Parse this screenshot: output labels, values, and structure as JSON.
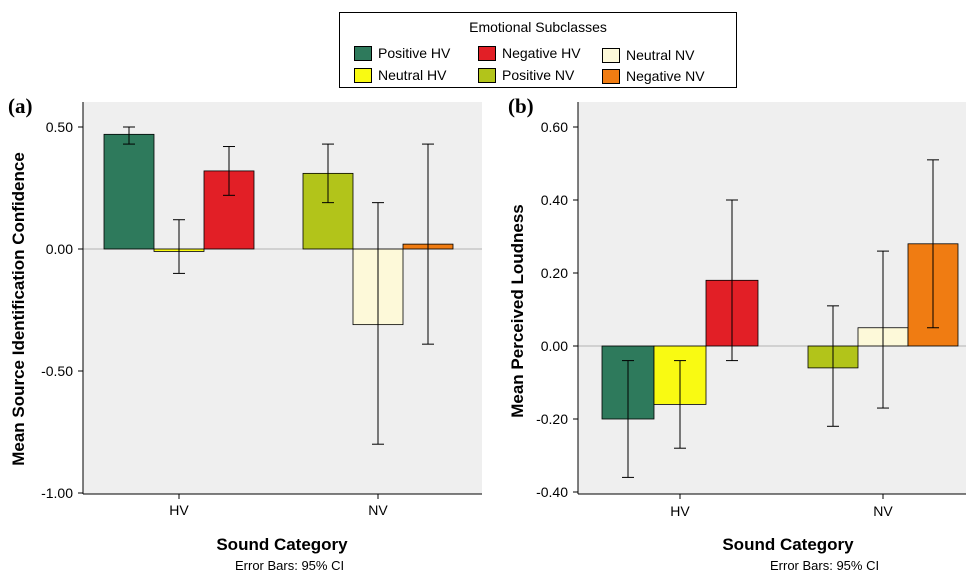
{
  "legend": {
    "title": "Emotional Subclasses",
    "items": [
      {
        "label": "Positive HV",
        "color": "#2e7a5c"
      },
      {
        "label": "Negative HV",
        "color": "#e21f26"
      },
      {
        "label": "Neutral NV",
        "color": "#fdf9d9"
      },
      {
        "label": "Neutral HV",
        "color": "#f9fa12"
      },
      {
        "label": "Positive NV",
        "color": "#b2c41a"
      },
      {
        "label": "Negative NV",
        "color": "#f07c12"
      }
    ]
  },
  "chart_data": [
    {
      "type": "bar",
      "panel_label": "(a)",
      "xlabel": "Sound Category",
      "ylabel": "Mean Source Identification Confidence",
      "footnote": "Error Bars: 95% CI",
      "ylim": [
        -1.0,
        0.6
      ],
      "yticks": [
        0.5,
        0.0,
        -0.5,
        -1.0
      ],
      "ytick_labels": [
        "0.50",
        "0.00",
        "-0.50",
        "-1.00"
      ],
      "grid": false,
      "categories": [
        "HV",
        "NV"
      ],
      "series": [
        {
          "name": "Positive HV",
          "category": "HV",
          "color": "#2e7a5c",
          "value": 0.47,
          "ci": [
            0.43,
            0.5
          ]
        },
        {
          "name": "Neutral HV",
          "category": "HV",
          "color": "#f9fa12",
          "value": -0.01,
          "ci": [
            -0.1,
            0.12
          ]
        },
        {
          "name": "Negative HV",
          "category": "HV",
          "color": "#e21f26",
          "value": 0.32,
          "ci": [
            0.22,
            0.42
          ]
        },
        {
          "name": "Positive NV",
          "category": "NV",
          "color": "#b2c41a",
          "value": 0.31,
          "ci": [
            0.19,
            0.43
          ]
        },
        {
          "name": "Neutral NV",
          "category": "NV",
          "color": "#fdf9d9",
          "value": -0.31,
          "ci": [
            -0.8,
            0.19
          ]
        },
        {
          "name": "Negative NV",
          "category": "NV",
          "color": "#f07c12",
          "value": 0.02,
          "ci": [
            -0.39,
            0.43
          ]
        }
      ]
    },
    {
      "type": "bar",
      "panel_label": "(b)",
      "xlabel": "Sound Category",
      "ylabel": "Mean Perceived Loudness",
      "footnote": "Error Bars: 95% CI",
      "ylim": [
        -0.4,
        0.65
      ],
      "yticks": [
        0.6,
        0.4,
        0.2,
        0.0,
        -0.2,
        -0.4
      ],
      "ytick_labels": [
        "0.60",
        "0.40",
        "0.20",
        "0.00",
        "-0.20",
        "-0.40"
      ],
      "grid": false,
      "categories": [
        "HV",
        "NV"
      ],
      "series": [
        {
          "name": "Positive HV",
          "category": "HV",
          "color": "#2e7a5c",
          "value": -0.2,
          "ci": [
            -0.36,
            -0.04
          ]
        },
        {
          "name": "Neutral HV",
          "category": "HV",
          "color": "#f9fa12",
          "value": -0.16,
          "ci": [
            -0.28,
            -0.04
          ]
        },
        {
          "name": "Negative HV",
          "category": "HV",
          "color": "#e21f26",
          "value": 0.18,
          "ci": [
            -0.04,
            0.4
          ]
        },
        {
          "name": "Positive NV",
          "category": "NV",
          "color": "#b2c41a",
          "value": -0.06,
          "ci": [
            -0.22,
            0.11
          ]
        },
        {
          "name": "Neutral NV",
          "category": "NV",
          "color": "#fdf9d9",
          "value": 0.05,
          "ci": [
            -0.17,
            0.26
          ]
        },
        {
          "name": "Negative NV",
          "category": "NV",
          "color": "#f07c12",
          "value": 0.28,
          "ci": [
            0.05,
            0.51
          ]
        }
      ]
    }
  ]
}
